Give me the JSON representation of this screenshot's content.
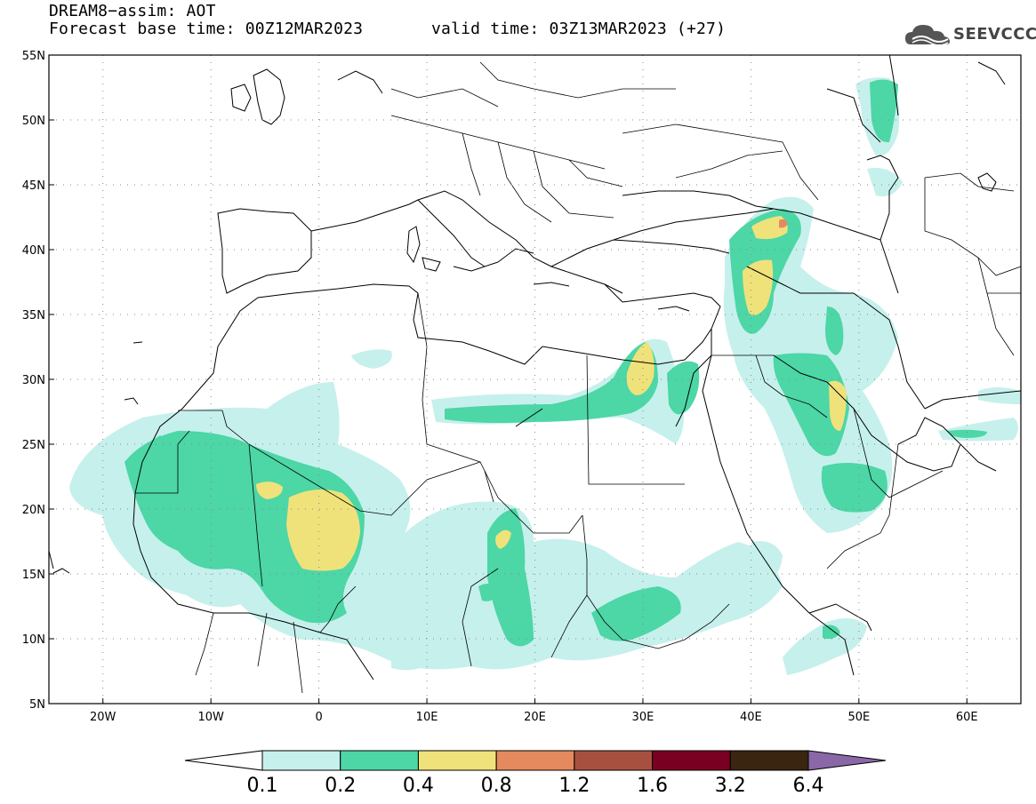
{
  "header": {
    "line1": "DREAM8−assim: AOT",
    "line2": "Forecast base time: 00Z12MAR2023",
    "line3": "valid time: 03Z13MAR2023 (+27)"
  },
  "logo": {
    "text": "SEEVCCC",
    "icon": "cloud-icon"
  },
  "map": {
    "lat_labels": [
      "55N",
      "50N",
      "45N",
      "40N",
      "35N",
      "30N",
      "25N",
      "20N",
      "15N",
      "10N",
      "5N"
    ],
    "lat_values": [
      55,
      50,
      45,
      40,
      35,
      30,
      25,
      20,
      15,
      10,
      5
    ],
    "lon_labels": [
      "20W",
      "10W",
      "0",
      "10E",
      "20E",
      "30E",
      "40E",
      "50E",
      "60E"
    ],
    "lon_values": [
      -20,
      -10,
      0,
      10,
      20,
      30,
      40,
      50,
      60
    ],
    "extent": {
      "lon_min": -25,
      "lon_max": 65,
      "lat_min": 5,
      "lat_max": 55
    }
  },
  "colorbar": {
    "labels": [
      "0.1",
      "0.2",
      "0.4",
      "0.8",
      "1.2",
      "1.6",
      "3.2",
      "6.4"
    ],
    "colors": [
      "#ffffff",
      "#c6f0ec",
      "#4dd6a6",
      "#f0e27a",
      "#e58a5e",
      "#a85040",
      "#7a0021",
      "#3a2510",
      "#8a68a8"
    ]
  },
  "colors": {
    "aot_0_1": "#c6f0ec",
    "aot_0_2": "#4dd6a6",
    "aot_0_4": "#f0e27a",
    "aot_0_8": "#e58a5e"
  }
}
